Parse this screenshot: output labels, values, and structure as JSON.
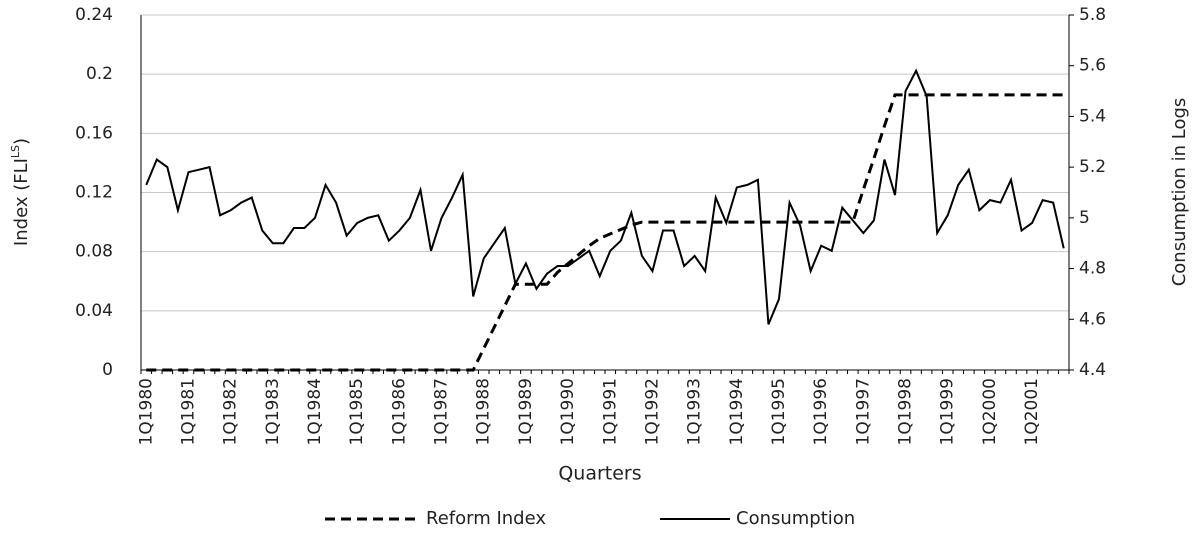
{
  "chart_data": {
    "type": "line",
    "ylabel": [
      "Index (FLI",
      "LS",
      ")"
    ],
    "y2label": "Consumption in Logs",
    "xlabel": "Quarters",
    "categories": [
      "1Q1980",
      null,
      null,
      null,
      "1Q1981",
      null,
      null,
      null,
      "1Q1982",
      null,
      null,
      null,
      "1Q1983",
      null,
      null,
      null,
      "1Q1984",
      null,
      null,
      null,
      "1Q1985",
      null,
      null,
      null,
      "1Q1986",
      null,
      null,
      null,
      "1Q1987",
      null,
      null,
      null,
      "1Q1988",
      null,
      null,
      null,
      "1Q1989",
      null,
      null,
      null,
      "1Q1990",
      null,
      null,
      null,
      "1Q1991",
      null,
      null,
      null,
      "1Q1992",
      null,
      null,
      null,
      "1Q1993",
      null,
      null,
      null,
      "1Q1994",
      null,
      null,
      null,
      "1Q1995",
      null,
      null,
      null,
      "1Q1996",
      null,
      null,
      null,
      "1Q1997",
      null,
      null,
      null,
      "1Q1998",
      null,
      null,
      null,
      "1Q1999",
      null,
      null,
      null,
      "1Q2000",
      null,
      null,
      null,
      "1Q2001",
      null,
      null,
      null
    ],
    "series": [
      {
        "name": "Reform Index",
        "color": "#000000",
        "line_style": "dashed",
        "axis": "y",
        "values": [
          0,
          0,
          0,
          0,
          0,
          0,
          0,
          0,
          0,
          0,
          0,
          0,
          0,
          0,
          0,
          0,
          0,
          0,
          0,
          0,
          0,
          0,
          0,
          0,
          0,
          0,
          0,
          0,
          0,
          0,
          0,
          0,
          0.0145,
          0.029,
          0.0435,
          0.058,
          0.058,
          0.058,
          0.058,
          0.066,
          0.072,
          0.078,
          0.084,
          0.089,
          0.092,
          0.095,
          0.098,
          0.1,
          0.1,
          0.1,
          0.1,
          0.1,
          0.1,
          0.1,
          0.1,
          0.1,
          0.1,
          0.1,
          0.1,
          0.1,
          0.1,
          0.1,
          0.1,
          0.1,
          0.1,
          0.1,
          0.1,
          0.1,
          0.122,
          0.143,
          0.165,
          0.186,
          0.186,
          0.186,
          0.186,
          0.186,
          0.186,
          0.186,
          0.186,
          0.186,
          0.186,
          0.186,
          0.186,
          0.186,
          0.186,
          0.186,
          0.186,
          0.186
        ]
      },
      {
        "name": "Consumption",
        "color": "#000000",
        "line_style": "solid",
        "axis": "y2",
        "values": [
          5.13,
          5.23,
          5.2,
          5.03,
          5.18,
          5.19,
          5.2,
          5.01,
          5.03,
          5.06,
          5.08,
          4.95,
          4.9,
          4.9,
          4.96,
          4.96,
          5.0,
          5.13,
          5.06,
          4.93,
          4.98,
          5.0,
          5.01,
          4.91,
          4.95,
          5.0,
          5.11,
          4.87,
          5.0,
          5.08,
          5.17,
          4.69,
          4.84,
          4.9,
          4.96,
          4.74,
          4.82,
          4.72,
          4.78,
          4.81,
          4.81,
          4.84,
          4.87,
          4.77,
          4.87,
          4.91,
          5.02,
          4.85,
          4.79,
          4.95,
          4.95,
          4.81,
          4.85,
          4.79,
          5.08,
          4.98,
          5.12,
          5.13,
          5.15,
          4.58,
          4.68,
          5.06,
          4.97,
          4.79,
          4.89,
          4.87,
          5.04,
          4.99,
          4.94,
          4.99,
          5.23,
          5.09,
          5.5,
          5.58,
          5.48,
          4.94,
          5.01,
          5.13,
          5.19,
          5.03,
          5.07,
          5.06,
          5.15,
          4.95,
          4.98,
          5.07,
          5.06,
          4.88
        ]
      }
    ],
    "ylim": [
      0,
      0.24
    ],
    "yticks": [
      0.24,
      0.2,
      0.16,
      0.12,
      0.08,
      0.04,
      0
    ],
    "y2lim": [
      4.4,
      5.8
    ],
    "y2ticks": [
      5.8,
      5.6,
      5.4,
      5.2,
      5,
      4.8,
      4.6,
      4.4
    ],
    "grid": true,
    "legend": "bottom"
  }
}
